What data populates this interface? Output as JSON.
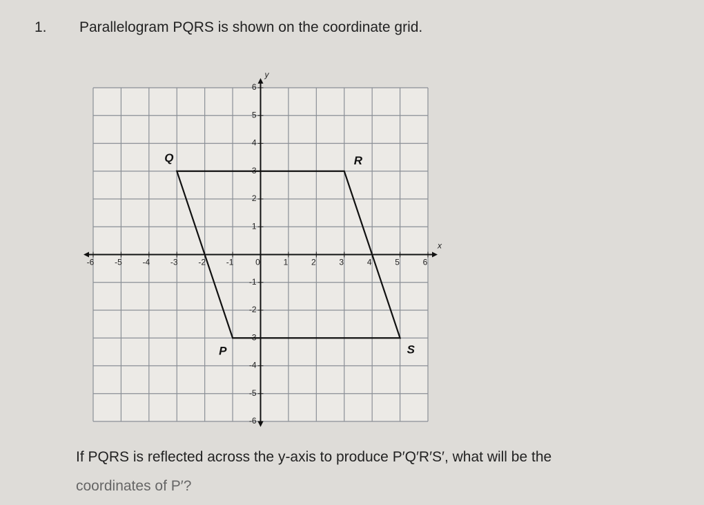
{
  "question": {
    "number": "1.",
    "intro": "Parallelogram PQRS is shown on the coordinate grid.",
    "prompt_line1": "If PQRS is reflected across the y-axis to produce P′Q′R′S′, what will be the",
    "prompt_line2": "coordinates of P′?"
  },
  "graph": {
    "x_label": "x",
    "y_label": "y",
    "xlim": [
      -6,
      6
    ],
    "ylim": [
      -6,
      6
    ],
    "xticks": [
      -6,
      -5,
      -4,
      -3,
      -2,
      -1,
      0,
      1,
      2,
      3,
      4,
      5,
      6
    ],
    "yticks": [
      -6,
      -5,
      -4,
      -3,
      -2,
      -1,
      1,
      2,
      3,
      4,
      5,
      6
    ],
    "vertices": [
      {
        "label": "P",
        "x": -1,
        "y": -3
      },
      {
        "label": "Q",
        "x": -3,
        "y": 3
      },
      {
        "label": "R",
        "x": 3,
        "y": 3
      },
      {
        "label": "S",
        "x": 5,
        "y": -3
      }
    ]
  }
}
